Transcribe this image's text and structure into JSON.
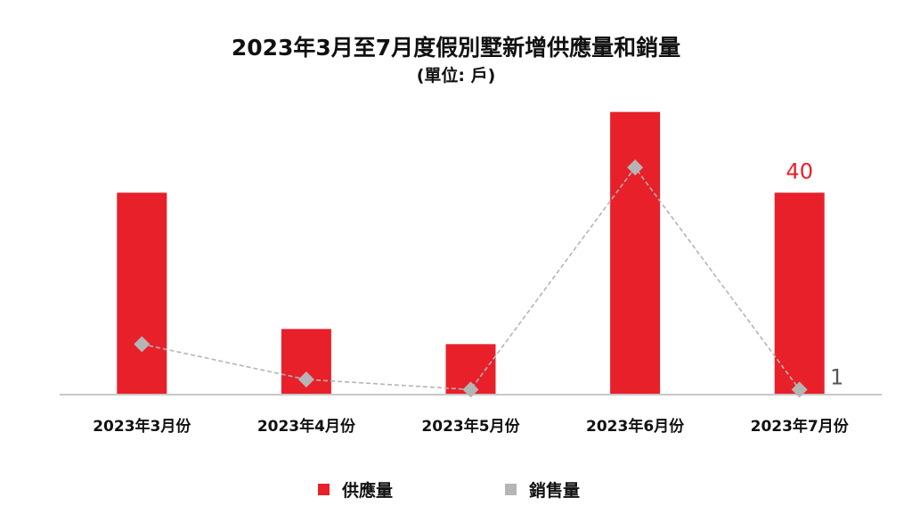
{
  "title": "2023年3月至7月度假別墅新增供應量和銷量",
  "subtitle": "(單位: 戶)",
  "colors": {
    "supply": "#e8202a",
    "sales": "#b5b5b5",
    "axis": "#c8c8c8",
    "supply_label": "#e8202a",
    "sales_label": "#555555"
  },
  "legend": {
    "supply": "供應量",
    "sales": "銷售量"
  },
  "chart_data": {
    "type": "bar",
    "categories": [
      "2023年3月份",
      "2023年4月份",
      "2023年5月份",
      "2023年6月份",
      "2023年7月份"
    ],
    "series": [
      {
        "name": "供應量",
        "type": "bar",
        "values": [
          40,
          13,
          10,
          56,
          40
        ]
      },
      {
        "name": "銷售量",
        "type": "line",
        "values": [
          10,
          3,
          1,
          45,
          1
        ]
      }
    ],
    "data_labels": [
      {
        "series": "供應量",
        "category": "2023年7月份",
        "text": "40"
      },
      {
        "series": "銷售量",
        "category": "2023年7月份",
        "text": "1"
      }
    ],
    "ylim": [
      0,
      60
    ],
    "grid": false,
    "legend_position": "bottom"
  }
}
